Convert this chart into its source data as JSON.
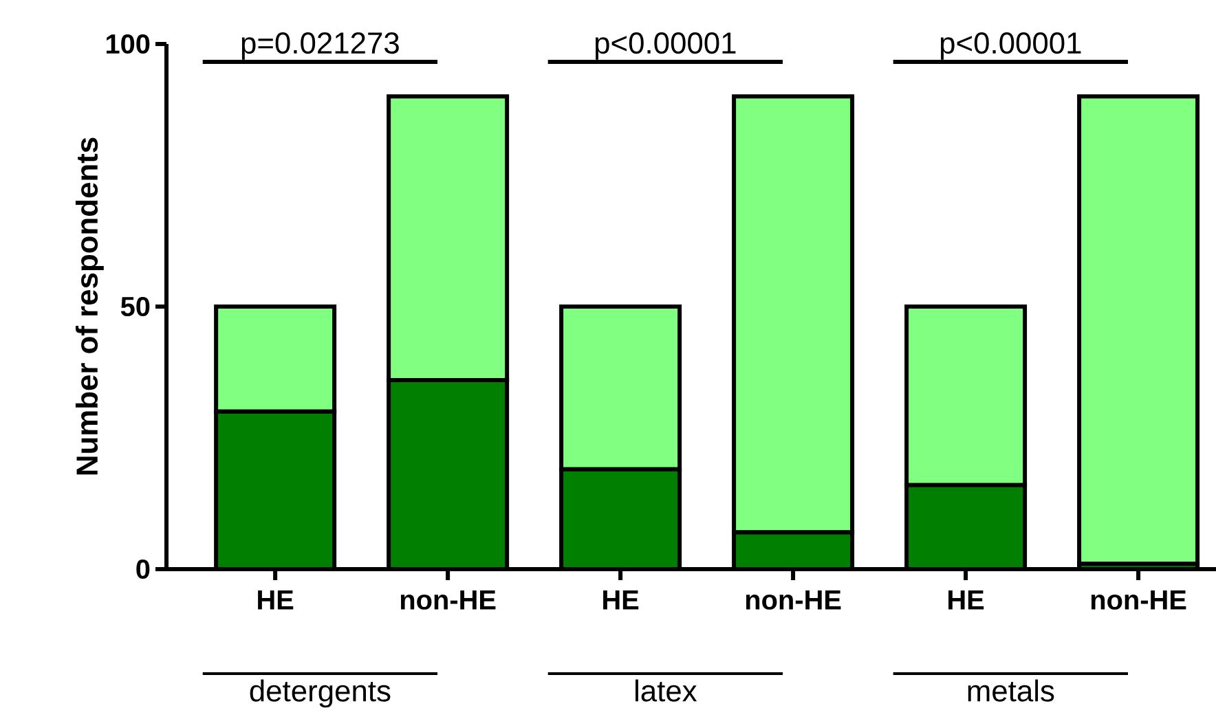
{
  "chart_data": {
    "type": "bar",
    "stacked": true,
    "ylabel": "Number of respondents",
    "categories": [
      "HE",
      "non-HE",
      "HE",
      "non-HE",
      "HE",
      "non-HE"
    ],
    "series": [
      {
        "color": "#007f00",
        "values": [
          30,
          36,
          19,
          7,
          16,
          1
        ]
      },
      {
        "color": "#80ff80",
        "values": [
          20,
          54,
          31,
          83,
          34,
          89
        ]
      }
    ],
    "ylim": [
      0,
      100
    ],
    "yticks": [
      0,
      50,
      100
    ],
    "annotations": [
      "p=0.021273",
      "p<0.00001",
      "p<0.00001",
      "detergents",
      "latex",
      "metals"
    ]
  }
}
